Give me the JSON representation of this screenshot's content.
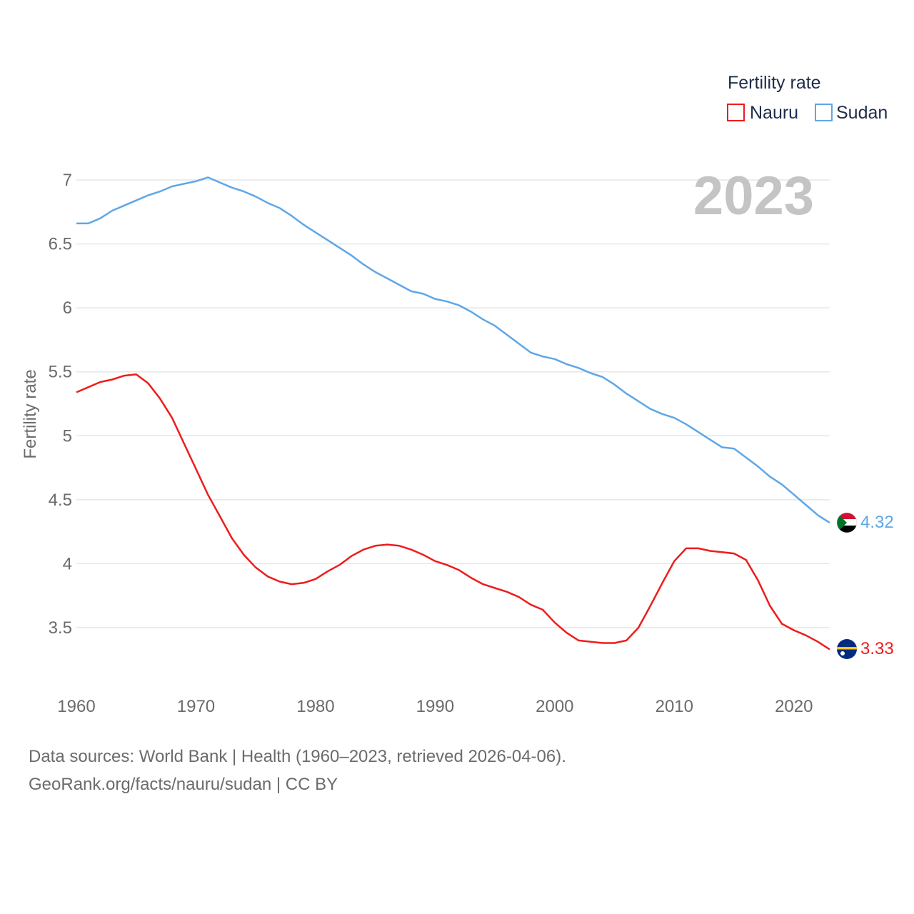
{
  "chart_data": {
    "type": "line",
    "title": "",
    "year_label": "2023",
    "xlabel": "",
    "ylabel": "Fertility rate",
    "xlim": [
      1960,
      2023
    ],
    "ylim": [
      3.1,
      7.2
    ],
    "xticks": [
      1960,
      1970,
      1980,
      1990,
      2000,
      2010,
      2020
    ],
    "yticks": [
      3.5,
      4,
      4.5,
      5,
      5.5,
      6,
      6.5,
      7
    ],
    "ytick_labels": [
      "3.5",
      "4",
      "4.5",
      "5",
      "5.5",
      "6",
      "6.5",
      "7"
    ],
    "legend": {
      "title": "Fertility rate",
      "position": "top-right",
      "entries": [
        "Nauru",
        "Sudan"
      ]
    },
    "x": [
      1960,
      1961,
      1962,
      1963,
      1964,
      1965,
      1966,
      1967,
      1968,
      1969,
      1970,
      1971,
      1972,
      1973,
      1974,
      1975,
      1976,
      1977,
      1978,
      1979,
      1980,
      1981,
      1982,
      1983,
      1984,
      1985,
      1986,
      1987,
      1988,
      1989,
      1990,
      1991,
      1992,
      1993,
      1994,
      1995,
      1996,
      1997,
      1998,
      1999,
      2000,
      2001,
      2002,
      2003,
      2004,
      2005,
      2006,
      2007,
      2008,
      2009,
      2010,
      2011,
      2012,
      2013,
      2014,
      2015,
      2016,
      2017,
      2018,
      2019,
      2020,
      2021,
      2022,
      2023
    ],
    "series": [
      {
        "name": "Nauru",
        "color": "#ee1c1c",
        "end_label": "3.33",
        "flag": "nauru-flag",
        "values": [
          5.34,
          5.38,
          5.42,
          5.44,
          5.47,
          5.48,
          5.41,
          5.29,
          5.14,
          4.94,
          4.74,
          4.54,
          4.37,
          4.2,
          4.07,
          3.97,
          3.9,
          3.86,
          3.84,
          3.85,
          3.88,
          3.94,
          3.99,
          4.06,
          4.11,
          4.14,
          4.15,
          4.14,
          4.11,
          4.07,
          4.02,
          3.99,
          3.95,
          3.89,
          3.84,
          3.81,
          3.78,
          3.74,
          3.68,
          3.64,
          3.54,
          3.46,
          3.4,
          3.39,
          3.38,
          3.38,
          3.4,
          3.5,
          3.67,
          3.85,
          4.02,
          4.12,
          4.12,
          4.1,
          4.09,
          4.08,
          4.03,
          3.87,
          3.67,
          3.53,
          3.48,
          3.44,
          3.39,
          3.33
        ]
      },
      {
        "name": "Sudan",
        "color": "#5ea7e8",
        "end_label": "4.32",
        "flag": "sudan-flag",
        "values": [
          6.66,
          6.66,
          6.7,
          6.76,
          6.8,
          6.84,
          6.88,
          6.91,
          6.95,
          6.97,
          6.99,
          7.02,
          6.98,
          6.94,
          6.91,
          6.87,
          6.82,
          6.78,
          6.72,
          6.65,
          6.59,
          6.53,
          6.47,
          6.41,
          6.34,
          6.28,
          6.23,
          6.18,
          6.13,
          6.11,
          6.07,
          6.05,
          6.02,
          5.97,
          5.91,
          5.86,
          5.79,
          5.72,
          5.65,
          5.62,
          5.6,
          5.56,
          5.53,
          5.49,
          5.46,
          5.4,
          5.33,
          5.27,
          5.21,
          5.17,
          5.14,
          5.09,
          5.03,
          4.97,
          4.91,
          4.9,
          4.83,
          4.76,
          4.68,
          4.62,
          4.54,
          4.46,
          4.38,
          4.32
        ]
      }
    ]
  },
  "footer": {
    "line1": "Data sources: World Bank | Health (1960–2023, retrieved 2026-04-06).",
    "line2": "GeoRank.org/facts/nauru/sudan | CC BY"
  }
}
